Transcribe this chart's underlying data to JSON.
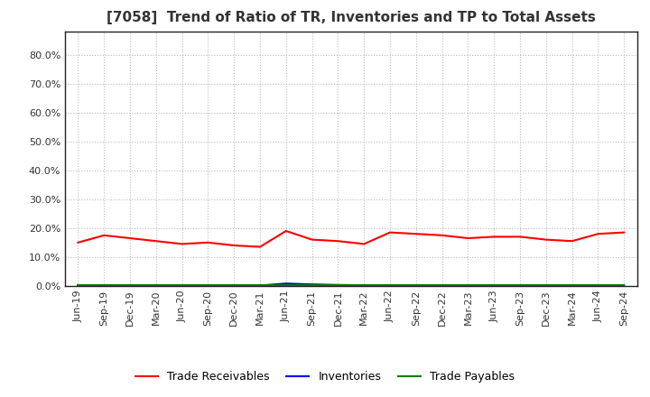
{
  "title": "[7058]  Trend of Ratio of TR, Inventories and TP to Total Assets",
  "x_labels": [
    "Jun-19",
    "Sep-19",
    "Dec-19",
    "Mar-20",
    "Jun-20",
    "Sep-20",
    "Dec-20",
    "Mar-21",
    "Jun-21",
    "Sep-21",
    "Dec-21",
    "Mar-22",
    "Jun-22",
    "Sep-22",
    "Dec-22",
    "Mar-23",
    "Jun-23",
    "Sep-23",
    "Dec-23",
    "Mar-24",
    "Jun-24",
    "Sep-24"
  ],
  "trade_receivables": [
    15.0,
    17.5,
    16.5,
    15.5,
    14.5,
    15.0,
    14.0,
    13.5,
    19.0,
    16.0,
    15.5,
    14.5,
    18.5,
    18.0,
    17.5,
    16.5,
    17.0,
    17.0,
    16.0,
    15.5,
    18.0,
    18.5
  ],
  "inventories": [
    0.1,
    0.1,
    0.1,
    0.1,
    0.1,
    0.1,
    0.1,
    0.1,
    0.8,
    0.5,
    0.3,
    0.2,
    0.2,
    0.2,
    0.2,
    0.2,
    0.2,
    0.2,
    0.2,
    0.2,
    0.2,
    0.2
  ],
  "trade_payables": [
    0.3,
    0.3,
    0.3,
    0.3,
    0.3,
    0.3,
    0.3,
    0.3,
    0.3,
    0.3,
    0.3,
    0.3,
    0.3,
    0.3,
    0.3,
    0.3,
    0.3,
    0.3,
    0.3,
    0.3,
    0.3,
    0.3
  ],
  "ylim": [
    0,
    88
  ],
  "yticks": [
    0,
    10,
    20,
    30,
    40,
    50,
    60,
    70,
    80
  ],
  "line_colors": {
    "trade_receivables": "#ff0000",
    "inventories": "#0000ff",
    "trade_payables": "#008000"
  },
  "legend_labels": [
    "Trade Receivables",
    "Inventories",
    "Trade Payables"
  ],
  "background_color": "#ffffff",
  "plot_bg_color": "#ffffff",
  "grid_color": "#bbbbbb",
  "title_fontsize": 11,
  "tick_fontsize": 8,
  "linewidth": 1.5
}
